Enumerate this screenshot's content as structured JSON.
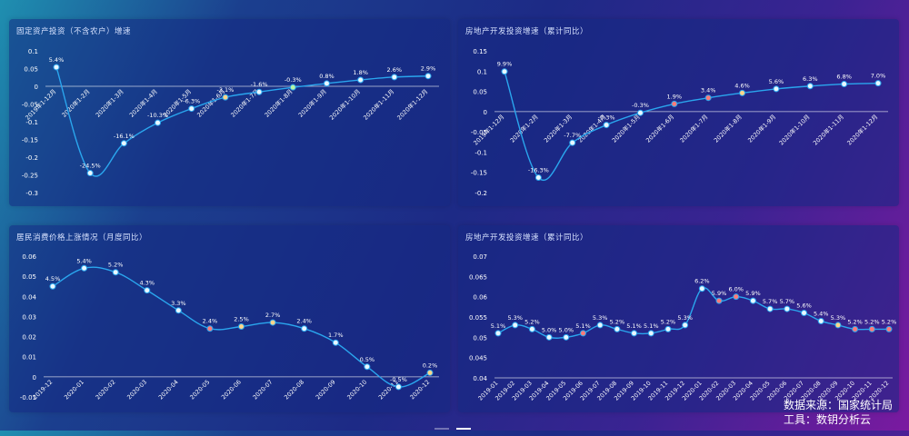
{
  "footer": {
    "source": "数据来源：国家统计局",
    "tool": "工具：数钥分析云"
  },
  "colors": {
    "line": "#2aa6ee",
    "point_default": "#e9f7ff",
    "point_alt_green": "#b8f5a5",
    "point_alt_orange": "#ffd58a",
    "point_alt_red": "#ff7a7a"
  },
  "charts": [
    {
      "id": "fixed-asset",
      "title": "固定资产投资（不含农户）增速",
      "chart_data": {
        "type": "line",
        "title": "固定资产投资（不含农户）增速",
        "categories": [
          "2019年1-12月",
          "2020年1-2月",
          "2020年1-3月",
          "2020年1-4月",
          "2020年1-5月",
          "2020年1-6月",
          "2020年1-7月",
          "2020年1-8月",
          "2020年1-9月",
          "2020年1-10月",
          "2020年1-11月",
          "2020年1-12月"
        ],
        "values": [
          0.054,
          -0.245,
          -0.161,
          -0.103,
          -0.063,
          -0.031,
          -0.016,
          -0.003,
          0.008,
          0.018,
          0.026,
          0.029
        ],
        "labels": [
          "5.4%",
          "-24.5%",
          "-16.1%",
          "-10.3%",
          "-6.3%",
          "-3.1%",
          "-1.6%",
          "-0.3%",
          "0.8%",
          "1.8%",
          "2.6%",
          "2.9%"
        ],
        "yticks": [
          "0.1",
          "0.05",
          "0",
          "-0.05",
          "-0.1",
          "-0.15",
          "-0.2",
          "-0.25",
          "-0.3"
        ],
        "ylim": [
          -0.3,
          0.1
        ]
      }
    },
    {
      "id": "real-estate-1",
      "title": "房地产开发投资增速（累计同比）",
      "chart_data": {
        "type": "line",
        "title": "房地产开发投资增速（累计同比）",
        "categories": [
          "2019年1-12月",
          "2020年1-2月",
          "2020年1-3月",
          "2020年1-4月",
          "2020年1-5月",
          "2020年1-6月",
          "2020年1-7月",
          "2020年1-8月",
          "2020年1-9月",
          "2020年1-10月",
          "2020年1-11月",
          "2020年1-12月"
        ],
        "values": [
          0.099,
          -0.163,
          -0.077,
          -0.033,
          -0.003,
          0.019,
          0.034,
          0.046,
          0.056,
          0.063,
          0.068,
          0.07
        ],
        "labels": [
          "9.9%",
          "-16.3%",
          "-7.7%",
          "-3.3%",
          "-0.3%",
          "1.9%",
          "3.4%",
          "4.6%",
          "5.6%",
          "6.3%",
          "6.8%",
          "7.0%"
        ],
        "yticks": [
          "0.15",
          "0.1",
          "0.05",
          "0",
          "-0.05",
          "-0.1",
          "-0.15",
          "-0.2"
        ],
        "ylim": [
          -0.2,
          0.15
        ]
      }
    },
    {
      "id": "cpi",
      "title": "居民消费价格上涨情况（月度同比）",
      "chart_data": {
        "type": "line",
        "title": "居民消费价格上涨情况（月度同比）",
        "categories": [
          "2019-12",
          "2020-01",
          "2020-02",
          "2020-03",
          "2020-04",
          "2020-05",
          "2020-06",
          "2020-07",
          "2020-08",
          "2020-09",
          "2020-10",
          "2020-11",
          "2020-12"
        ],
        "values": [
          0.045,
          0.054,
          0.052,
          0.043,
          0.033,
          0.024,
          0.025,
          0.027,
          0.024,
          0.017,
          0.005,
          -0.005,
          0.002
        ],
        "labels": [
          "4.5%",
          "5.4%",
          "5.2%",
          "4.3%",
          "3.3%",
          "2.4%",
          "2.5%",
          "2.7%",
          "2.4%",
          "1.7%",
          "0.5%",
          "-0.5%",
          "0.2%"
        ],
        "yticks": [
          "0.06",
          "0.05",
          "0.04",
          "0.03",
          "0.02",
          "0.01",
          "0",
          "-0.01"
        ],
        "ylim": [
          -0.01,
          0.06
        ]
      }
    },
    {
      "id": "real-estate-2",
      "title": "房地产开发投资增速（累计同比）",
      "chart_data": {
        "type": "line",
        "title": "房地产开发投资增速（累计同比）",
        "categories": [
          "2019-01",
          "2019-02",
          "2019-03",
          "2019-04",
          "2019-05",
          "2019-06",
          "2019-07",
          "2019-08",
          "2019-09",
          "2019-10",
          "2019-11",
          "2019-12",
          "2020-01",
          "2020-02",
          "2020-03",
          "2020-04",
          "2020-05",
          "2020-06",
          "2020-07",
          "2020-08",
          "2020-09",
          "2020-10",
          "2020-11",
          "2020-12"
        ],
        "values": [
          0.051,
          0.053,
          0.052,
          0.05,
          0.05,
          0.051,
          0.053,
          0.052,
          0.051,
          0.051,
          0.052,
          0.053,
          0.062,
          0.059,
          0.06,
          0.059,
          0.057,
          0.057,
          0.056,
          0.054,
          0.053,
          0.052,
          0.052,
          0.052
        ],
        "labels": [
          "5.1%",
          "5.3%",
          "5.2%",
          "5.0%",
          "5.0%",
          "5.1%",
          "5.3%",
          "5.2%",
          "5.1%",
          "5.1%",
          "5.2%",
          "5.3%",
          "6.2%",
          "5.9%",
          "6.0%",
          "5.9%",
          "5.7%",
          "5.7%",
          "5.6%",
          "5.4%",
          "5.3%",
          "5.2%",
          "5.2%",
          "5.2%"
        ],
        "yticks": [
          "0.07",
          "0.065",
          "0.06",
          "0.055",
          "0.05",
          "0.045",
          "0.04"
        ],
        "ylim": [
          0.04,
          0.07
        ]
      }
    }
  ]
}
